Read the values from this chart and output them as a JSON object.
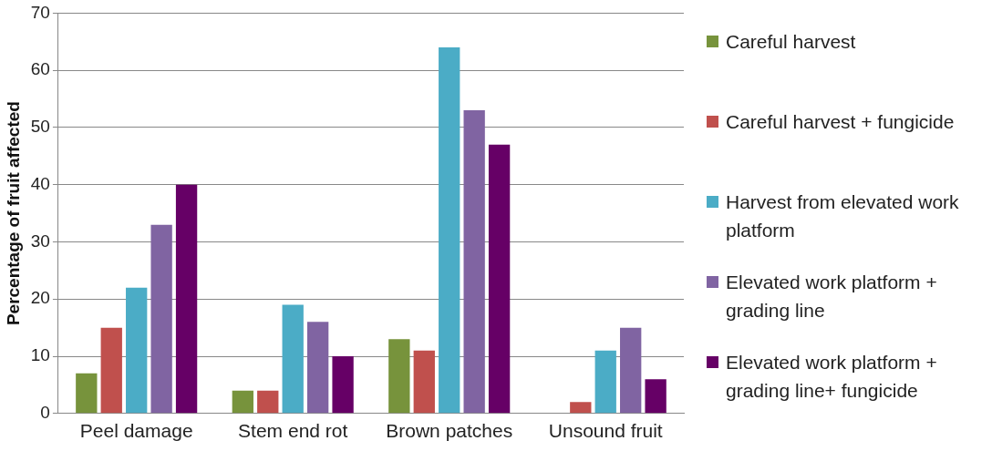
{
  "chart_data": {
    "type": "bar",
    "ylabel": "Percentage of fruit affected",
    "categories": [
      "Peel damage",
      "Stem end rot",
      "Brown patches",
      "Unsound fruit"
    ],
    "series": [
      {
        "name": "Careful harvest",
        "color": "#77933c",
        "values": [
          7,
          4,
          13,
          0
        ]
      },
      {
        "name": "Careful harvest + fungicide",
        "color": "#c0504d",
        "values": [
          15,
          4,
          11,
          2
        ]
      },
      {
        "name": "Harvest from elevated work platform",
        "color": "#4bacc6",
        "values": [
          22,
          19,
          64,
          11
        ]
      },
      {
        "name": "Elevated work platform + grading line",
        "color": "#8064a2",
        "values": [
          33,
          16,
          53,
          15
        ]
      },
      {
        "name": "Elevated work platform + grading line+ fungicide",
        "color": "#660066",
        "values": [
          40,
          10,
          47,
          6
        ]
      }
    ],
    "ylim": [
      0,
      70
    ],
    "yticks": [
      0,
      10,
      20,
      30,
      40,
      50,
      60,
      70
    ],
    "grid": "y",
    "legend": "right"
  }
}
